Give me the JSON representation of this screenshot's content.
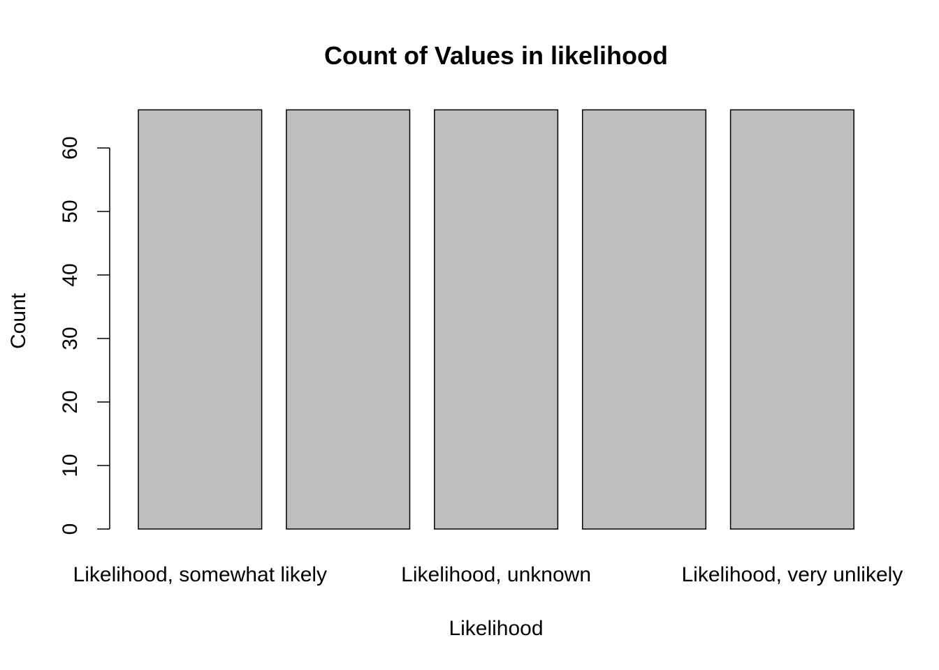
{
  "chart_data": {
    "type": "bar",
    "title": "Count of Values in likelihood",
    "xlabel": "Likelihood",
    "ylabel": "Count",
    "categories": [
      "Likelihood, somewhat likely",
      "",
      "Likelihood, unknown",
      "",
      "Likelihood, very unlikely"
    ],
    "values": [
      66,
      66,
      66,
      66,
      66
    ],
    "ylim": [
      0,
      66
    ],
    "yticks": [
      0,
      10,
      20,
      30,
      40,
      50,
      60
    ],
    "grid": false,
    "bar_color": "#bebebe",
    "edge_color": "#000000"
  }
}
